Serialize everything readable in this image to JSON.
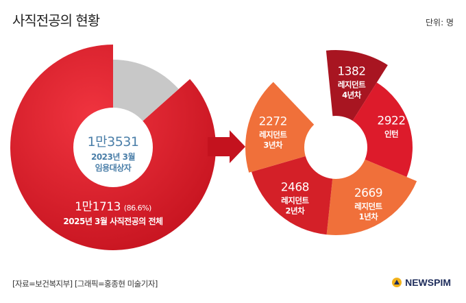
{
  "title": "사직전공의 현황",
  "unit": "단위: 명",
  "source": "[자료=보건복지부] [그래픽=홍종현 미술기자]",
  "logo": "NEWSPIM",
  "colors": {
    "red": "#dd1b2b",
    "grey": "#c8c8c8",
    "orange": "#f0703a",
    "darkred": "#a81521",
    "midred": "#d42028",
    "text_blue": "#4a7ea8"
  },
  "chart_data": [
    {
      "type": "pie",
      "slices": [
        {
          "label": "1만1713",
          "value": 11713,
          "percent": "(86.6%)",
          "desc": "2025년 3월 사직전공의 전체"
        },
        {
          "label": "",
          "value": 1818
        }
      ],
      "center": {
        "value": "1만3531",
        "desc1": "2023년 3월",
        "desc2": "임용대상자",
        "total": 13531
      }
    },
    {
      "type": "pie",
      "slices": [
        {
          "label": "레지던트 4년차",
          "line1": "레지던트",
          "line2": "4년차",
          "value": 1382
        },
        {
          "label": "인턴",
          "line1": "인턴",
          "line2": "",
          "value": 2922
        },
        {
          "label": "레지던트 1년차",
          "line1": "레지던트",
          "line2": "1년차",
          "value": 2669
        },
        {
          "label": "레지던트 2년차",
          "line1": "레지던트",
          "line2": "2년차",
          "value": 2468
        },
        {
          "label": "레지던트 3년차",
          "line1": "레지던트",
          "line2": "3년차",
          "value": 2272
        }
      ]
    }
  ]
}
